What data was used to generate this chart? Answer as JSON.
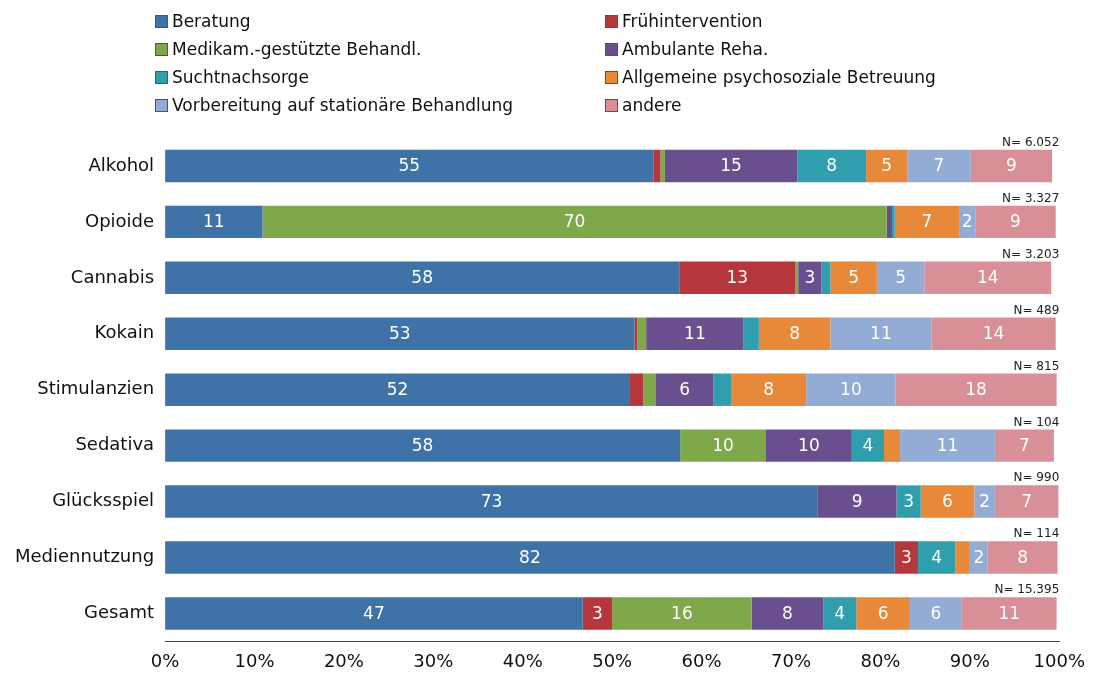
{
  "chart_data": {
    "type": "bar",
    "orientation": "horizontal",
    "stacked": true,
    "legend": "top",
    "grid": false,
    "categories": [
      "Alkohol",
      "Opioide",
      "Cannabis",
      "Kokain",
      "Stimulanzien",
      "Sedativa",
      "Glücksspiel",
      "Mediennutzung",
      "Gesamt"
    ],
    "xlim": [
      0,
      100
    ],
    "xticks": [
      {
        "value": 0,
        "label": "0%"
      },
      {
        "value": 10,
        "label": "10%"
      },
      {
        "value": 20,
        "label": "20%"
      },
      {
        "value": 30,
        "label": "30%"
      },
      {
        "value": 40,
        "label": "40%"
      },
      {
        "value": 50,
        "label": "50%"
      },
      {
        "value": 60,
        "label": "60%"
      },
      {
        "value": 70,
        "label": "70%"
      },
      {
        "value": 80,
        "label": "80%"
      },
      {
        "value": 90,
        "label": "90%"
      },
      {
        "value": 100,
        "label": "100%"
      }
    ],
    "series": [
      {
        "name": "Beratung",
        "color": "#3f73a8",
        "values": [
          54.6,
          10.9,
          57.5,
          52.5,
          52.0,
          57.6,
          73.0,
          81.6,
          46.7
        ],
        "value_labels": [
          "55",
          "11",
          "58",
          "53",
          "52",
          "58",
          "73",
          "82",
          "47"
        ]
      },
      {
        "name": "Frühintervention",
        "color": "#b5373b",
        "values": [
          0.8,
          0,
          13.0,
          0.3,
          1.5,
          0,
          0,
          2.6,
          3.3
        ],
        "value_labels": [
          null,
          null,
          "13",
          null,
          null,
          null,
          null,
          "3",
          "3"
        ]
      },
      {
        "name": "Medikam.-gestützte Behandl.",
        "color": "#7fa84a",
        "values": [
          0.5,
          69.8,
          0.3,
          1.0,
          1.4,
          9.6,
          0,
          0,
          15.6
        ],
        "value_labels": [
          null,
          "70",
          null,
          null,
          null,
          "10",
          null,
          null,
          "16"
        ]
      },
      {
        "name": "Ambulante Reha.",
        "color": "#6a4f8f",
        "values": [
          14.8,
          0.6,
          2.6,
          10.9,
          6.4,
          9.6,
          8.8,
          0,
          8.0
        ],
        "value_labels": [
          "15",
          null,
          "3",
          "11",
          "6",
          "10",
          "9",
          null,
          "8"
        ]
      },
      {
        "name": "Suchtnachsorge",
        "color": "#2f9fae",
        "values": [
          7.7,
          0.3,
          1.0,
          1.7,
          2.0,
          3.6,
          2.7,
          4.2,
          3.7
        ],
        "value_labels": [
          "8",
          null,
          null,
          null,
          null,
          "4",
          "3",
          "4",
          "4"
        ]
      },
      {
        "name": "Allgemeine psychosoziale Betreuung",
        "color": "#e8893a",
        "values": [
          4.6,
          7.2,
          5.2,
          8.0,
          8.4,
          1.8,
          6.0,
          1.6,
          6.0
        ],
        "value_labels": [
          "5",
          "7",
          "5",
          "8",
          "8",
          null,
          "6",
          null,
          "6"
        ]
      },
      {
        "name": "Vorbereitung auf stationäre Behandlung",
        "color": "#92acd6",
        "values": [
          7.1,
          1.8,
          5.3,
          11.3,
          10.0,
          10.6,
          2.3,
          2.0,
          5.8
        ],
        "value_labels": [
          "7",
          "2",
          "5",
          "11",
          "10",
          "11",
          "2",
          "2",
          "6"
        ]
      },
      {
        "name": "andere",
        "color": "#d98f98",
        "values": [
          9.1,
          9.0,
          14.2,
          13.9,
          18.0,
          6.6,
          7.1,
          7.8,
          10.6
        ],
        "value_labels": [
          "9",
          "9",
          "14",
          "14",
          "18",
          "7",
          "7",
          "8",
          "11"
        ]
      }
    ],
    "annotations": [
      "N= 6.052",
      "N= 3.327",
      "N= 3.203",
      "N= 489",
      "N= 815",
      "N= 104",
      "N= 990",
      "N= 114",
      "N= 15.395"
    ]
  }
}
